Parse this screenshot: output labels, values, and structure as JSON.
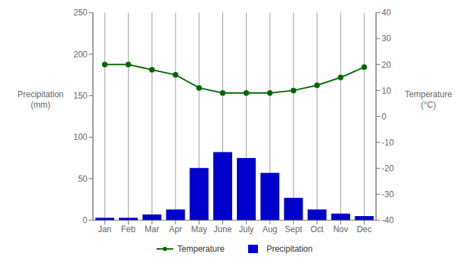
{
  "chart_data": {
    "type": "bar",
    "categories": [
      "Jan",
      "Feb",
      "Mar",
      "Apr",
      "May",
      "June",
      "July",
      "Aug",
      "Sept",
      "Oct",
      "Nov",
      "Dec"
    ],
    "series": [
      {
        "name": "Temperature",
        "type": "line",
        "axis": "y2",
        "color": "#006600",
        "marker": "o",
        "values": [
          20,
          20,
          18,
          16,
          11,
          9,
          9,
          9,
          10,
          12,
          15,
          19
        ]
      },
      {
        "name": "Precipitation",
        "type": "bar",
        "color": "#0000cc",
        "values": [
          3,
          3,
          7,
          13,
          63,
          82,
          75,
          57,
          27,
          13,
          8,
          5
        ]
      }
    ],
    "ylabel": "Precipitation (mm)",
    "y2label": "Temperature (°C)",
    "ylim": [
      0,
      250
    ],
    "yticks": [
      0,
      50,
      100,
      150,
      200,
      250
    ],
    "y2lim": [
      -40,
      40
    ],
    "y2ticks": [
      -40,
      -30,
      -20,
      -10,
      0,
      10,
      20,
      30,
      40
    ],
    "grid": "x",
    "legend": "bottom"
  }
}
